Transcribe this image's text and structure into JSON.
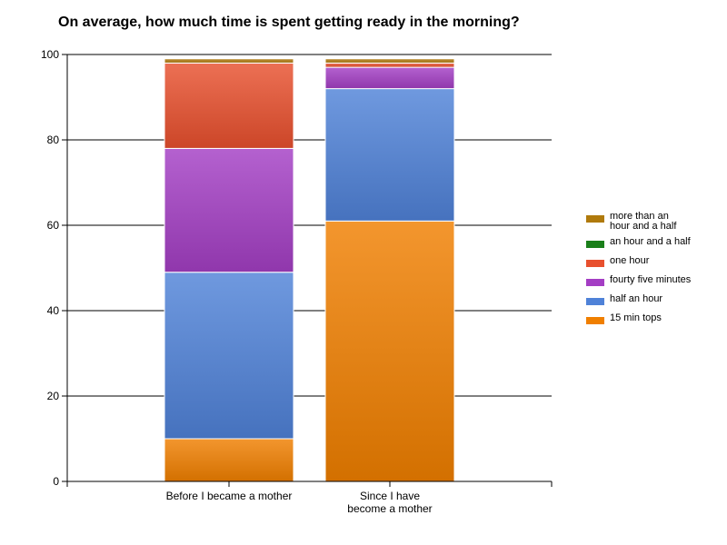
{
  "chart_data": {
    "type": "bar",
    "stacked": true,
    "title": "On average, how much time is spent getting ready in the morning?",
    "xlabel": "",
    "ylabel": "",
    "ylim": [
      0,
      100
    ],
    "yticks": [
      "0",
      "20",
      "40",
      "60",
      "80",
      "100"
    ],
    "grid": true,
    "legend_position": "right",
    "categories": [
      [
        "Before I became a mother"
      ],
      [
        "Since I have",
        "become a mother"
      ]
    ],
    "series": [
      {
        "name": "15 min tops",
        "color": "#f07f00",
        "values": [
          10,
          61
        ]
      },
      {
        "name": "half an hour",
        "color": "#4f82d8",
        "values": [
          39,
          31
        ]
      },
      {
        "name": "fourty five minutes",
        "color": "#a43ec4",
        "values": [
          29,
          5
        ]
      },
      {
        "name": "one hour",
        "color": "#e8502e",
        "values": [
          20,
          1
        ]
      },
      {
        "name": "an hour and a half",
        "color": "#1a7f1a",
        "values": [
          0,
          0
        ]
      },
      {
        "name": "more than an hour and a half",
        "color": "#b07a0c",
        "values": [
          1,
          1
        ]
      }
    ],
    "legend": [
      {
        "lines": [
          "more than an",
          "hour and a half"
        ],
        "color": "#b07a0c"
      },
      {
        "lines": [
          "an hour and a half"
        ],
        "color": "#1a7f1a"
      },
      {
        "lines": [
          "one hour"
        ],
        "color": "#e8502e"
      },
      {
        "lines": [
          "fourty five minutes"
        ],
        "color": "#a43ec4"
      },
      {
        "lines": [
          "half an hour"
        ],
        "color": "#4f82d8"
      },
      {
        "lines": [
          "15 min tops"
        ],
        "color": "#f07f00"
      }
    ]
  }
}
